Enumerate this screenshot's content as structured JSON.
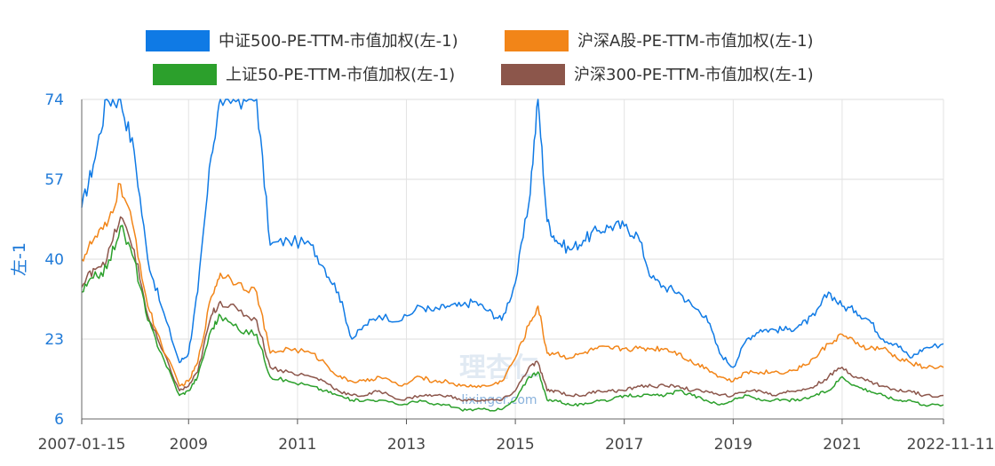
{
  "chart_data": {
    "type": "line",
    "title": "",
    "ylabel": "左-1",
    "ylim": [
      6,
      74
    ],
    "yticks": [
      6,
      23,
      40,
      57,
      74
    ],
    "xlim": [
      "2007-01-15",
      "2022-11-11"
    ],
    "xticks": [
      "2007-01-15",
      "2009",
      "2011",
      "2013",
      "2015",
      "2017",
      "2019",
      "2021",
      "2022-11-11"
    ],
    "x": [
      "2007-01-15",
      "2007-04",
      "2007-07",
      "2007-10",
      "2008-01",
      "2008-04",
      "2008-07",
      "2008-11",
      "2009-01",
      "2009-03",
      "2009-06",
      "2009-08",
      "2009-12",
      "2010-04",
      "2010-07",
      "2010-11",
      "2011-04",
      "2011-07",
      "2011-10",
      "2012-01",
      "2012-04",
      "2012-07",
      "2012-12",
      "2013-04",
      "2013-07",
      "2013-10",
      "2014-01",
      "2014-04",
      "2014-07",
      "2014-10",
      "2015-01",
      "2015-04",
      "2015-06",
      "2015-08",
      "2015-10",
      "2016-01",
      "2016-04",
      "2016-07",
      "2016-10",
      "2017-01",
      "2017-04",
      "2017-07",
      "2017-10",
      "2018-01",
      "2018-04",
      "2018-07",
      "2018-10",
      "2019-01",
      "2019-04",
      "2019-07",
      "2019-10",
      "2020-01",
      "2020-04",
      "2020-07",
      "2020-10",
      "2021-01",
      "2021-04",
      "2021-07",
      "2021-10",
      "2022-01",
      "2022-04",
      "2022-07",
      "2022-11-11"
    ],
    "series": [
      {
        "name": "中证500-PE-TTM-市值加权(左-1)",
        "color": "#0f7ae5",
        "values": [
          51,
          60,
          74,
          74,
          63,
          40,
          30,
          18,
          20,
          33,
          62,
          74,
          74,
          74,
          43,
          44,
          43,
          38,
          33,
          23,
          26,
          28,
          27,
          30,
          29,
          30,
          30,
          31,
          29,
          27,
          35,
          52,
          74,
          48,
          44,
          42,
          44,
          46,
          47,
          47,
          45,
          36,
          34,
          33,
          30,
          28,
          20,
          17,
          23,
          25,
          25,
          25,
          26,
          28,
          33,
          30,
          29,
          27,
          23,
          22,
          19,
          21,
          22
        ]
      },
      {
        "name": "沪深A股-PE-TTM-市值加权(左-1)",
        "color": "#f28518",
        "values": [
          40,
          44,
          47,
          56,
          46,
          30,
          22,
          13,
          14,
          18,
          32,
          37,
          35,
          33,
          20,
          21,
          20,
          18,
          15,
          14,
          14,
          15,
          13,
          15,
          14,
          14,
          13,
          13,
          13,
          14,
          19,
          26,
          30,
          20,
          20,
          19,
          20,
          21,
          21,
          21,
          21,
          21,
          21,
          20,
          18,
          17,
          15,
          14,
          16,
          16,
          16,
          16,
          17,
          19,
          22,
          24,
          22,
          21,
          21,
          19,
          18,
          17,
          17
        ]
      },
      {
        "name": "上证50-PE-TTM-市值加权(左-1)",
        "color": "#2ca02c",
        "values": [
          33,
          36,
          38,
          47,
          40,
          27,
          20,
          11,
          12,
          15,
          25,
          28,
          25,
          24,
          15,
          14,
          13,
          12,
          11,
          10,
          10,
          10,
          9,
          10,
          9,
          9,
          8,
          8,
          8,
          8,
          10,
          15,
          16,
          10,
          10,
          9,
          9,
          10,
          10,
          11,
          11,
          11,
          11,
          12,
          11,
          10,
          9,
          10,
          11,
          10,
          10,
          10,
          10,
          11,
          12,
          15,
          13,
          12,
          11,
          10,
          10,
          9,
          9
        ]
      },
      {
        "name": "沪深300-PE-TTM-市值加权(左-1)",
        "color": "#8c564b",
        "values": [
          34,
          38,
          40,
          49,
          42,
          28,
          21,
          12,
          13,
          16,
          28,
          31,
          29,
          27,
          17,
          16,
          15,
          14,
          12,
          11,
          11,
          12,
          10,
          11,
          11,
          11,
          10,
          10,
          10,
          10,
          12,
          17,
          18,
          12,
          12,
          11,
          11,
          12,
          12,
          12,
          13,
          13,
          13,
          13,
          12,
          12,
          11,
          11,
          12,
          12,
          11,
          12,
          12,
          13,
          15,
          17,
          15,
          14,
          13,
          12,
          12,
          11,
          11
        ]
      }
    ],
    "legend": "top-center",
    "grid": true,
    "watermark": [
      "理杏仁",
      "lixinger.com"
    ]
  }
}
